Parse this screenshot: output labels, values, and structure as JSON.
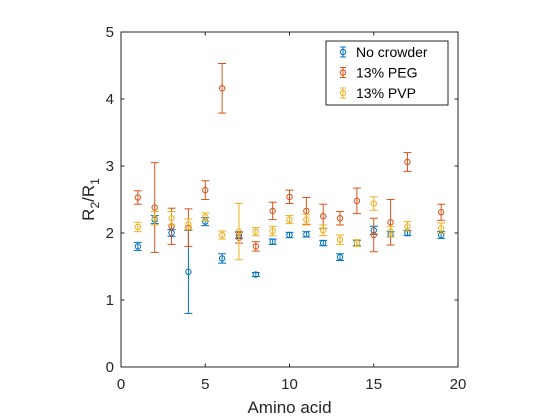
{
  "chart_data": {
    "type": "scatter",
    "title": "",
    "xlabel": "Amino acid",
    "ylabel_main": "R",
    "ylabel_sub1": "2",
    "ylabel_slash": "/R",
    "ylabel_sub2": "1",
    "xlim": [
      0,
      20
    ],
    "ylim": [
      0,
      5
    ],
    "xticks": [
      0,
      5,
      10,
      15,
      20
    ],
    "yticks": [
      0,
      1,
      2,
      3,
      4,
      5
    ],
    "grid": false,
    "legend_position": "top-right",
    "series": [
      {
        "name": "No crowder",
        "color": "#0072BD",
        "x": [
          1,
          2,
          3,
          4,
          5,
          6,
          7,
          8,
          9,
          10,
          11,
          12,
          13,
          14,
          15,
          16,
          17,
          19
        ],
        "y": [
          1.8,
          2.2,
          2.0,
          1.42,
          2.17,
          1.62,
          1.97,
          1.38,
          1.87,
          1.97,
          1.98,
          1.85,
          1.64,
          1.85,
          2.04,
          1.98,
          2.0,
          1.97
        ],
        "err": [
          0.06,
          0.06,
          0.05,
          0.62,
          0.06,
          0.07,
          0.05,
          0.03,
          0.04,
          0.04,
          0.04,
          0.04,
          0.05,
          0.04,
          0.06,
          0.04,
          0.04,
          0.05
        ]
      },
      {
        "name": "13% PEG",
        "color": "#D95319",
        "x": [
          1,
          2,
          3,
          4,
          5,
          6,
          7,
          8,
          9,
          10,
          11,
          12,
          13,
          14,
          15,
          16,
          17,
          19
        ],
        "y": [
          2.53,
          2.38,
          2.1,
          2.08,
          2.64,
          4.16,
          1.93,
          1.8,
          2.33,
          2.54,
          2.33,
          2.25,
          2.22,
          2.48,
          1.97,
          2.16,
          3.06,
          2.31
        ],
        "err": [
          0.1,
          0.67,
          0.27,
          0.28,
          0.14,
          0.37,
          0.08,
          0.07,
          0.13,
          0.1,
          0.2,
          0.18,
          0.1,
          0.19,
          0.25,
          0.34,
          0.14,
          0.12
        ]
      },
      {
        "name": "13% PVP",
        "color": "#EDB120",
        "x": [
          1,
          2,
          3,
          4,
          5,
          6,
          7,
          8,
          9,
          10,
          11,
          12,
          13,
          14,
          15,
          16,
          17,
          19
        ],
        "y": [
          2.09,
          2.22,
          2.22,
          2.13,
          2.24,
          1.97,
          2.02,
          2.02,
          2.03,
          2.2,
          2.2,
          2.04,
          1.9,
          1.85,
          2.44,
          2.02,
          2.1,
          2.07
        ],
        "err": [
          0.07,
          0.1,
          0.1,
          0.08,
          0.06,
          0.06,
          0.42,
          0.06,
          0.07,
          0.06,
          0.08,
          0.08,
          0.07,
          0.05,
          0.1,
          0.08,
          0.07,
          0.08
        ]
      }
    ]
  }
}
